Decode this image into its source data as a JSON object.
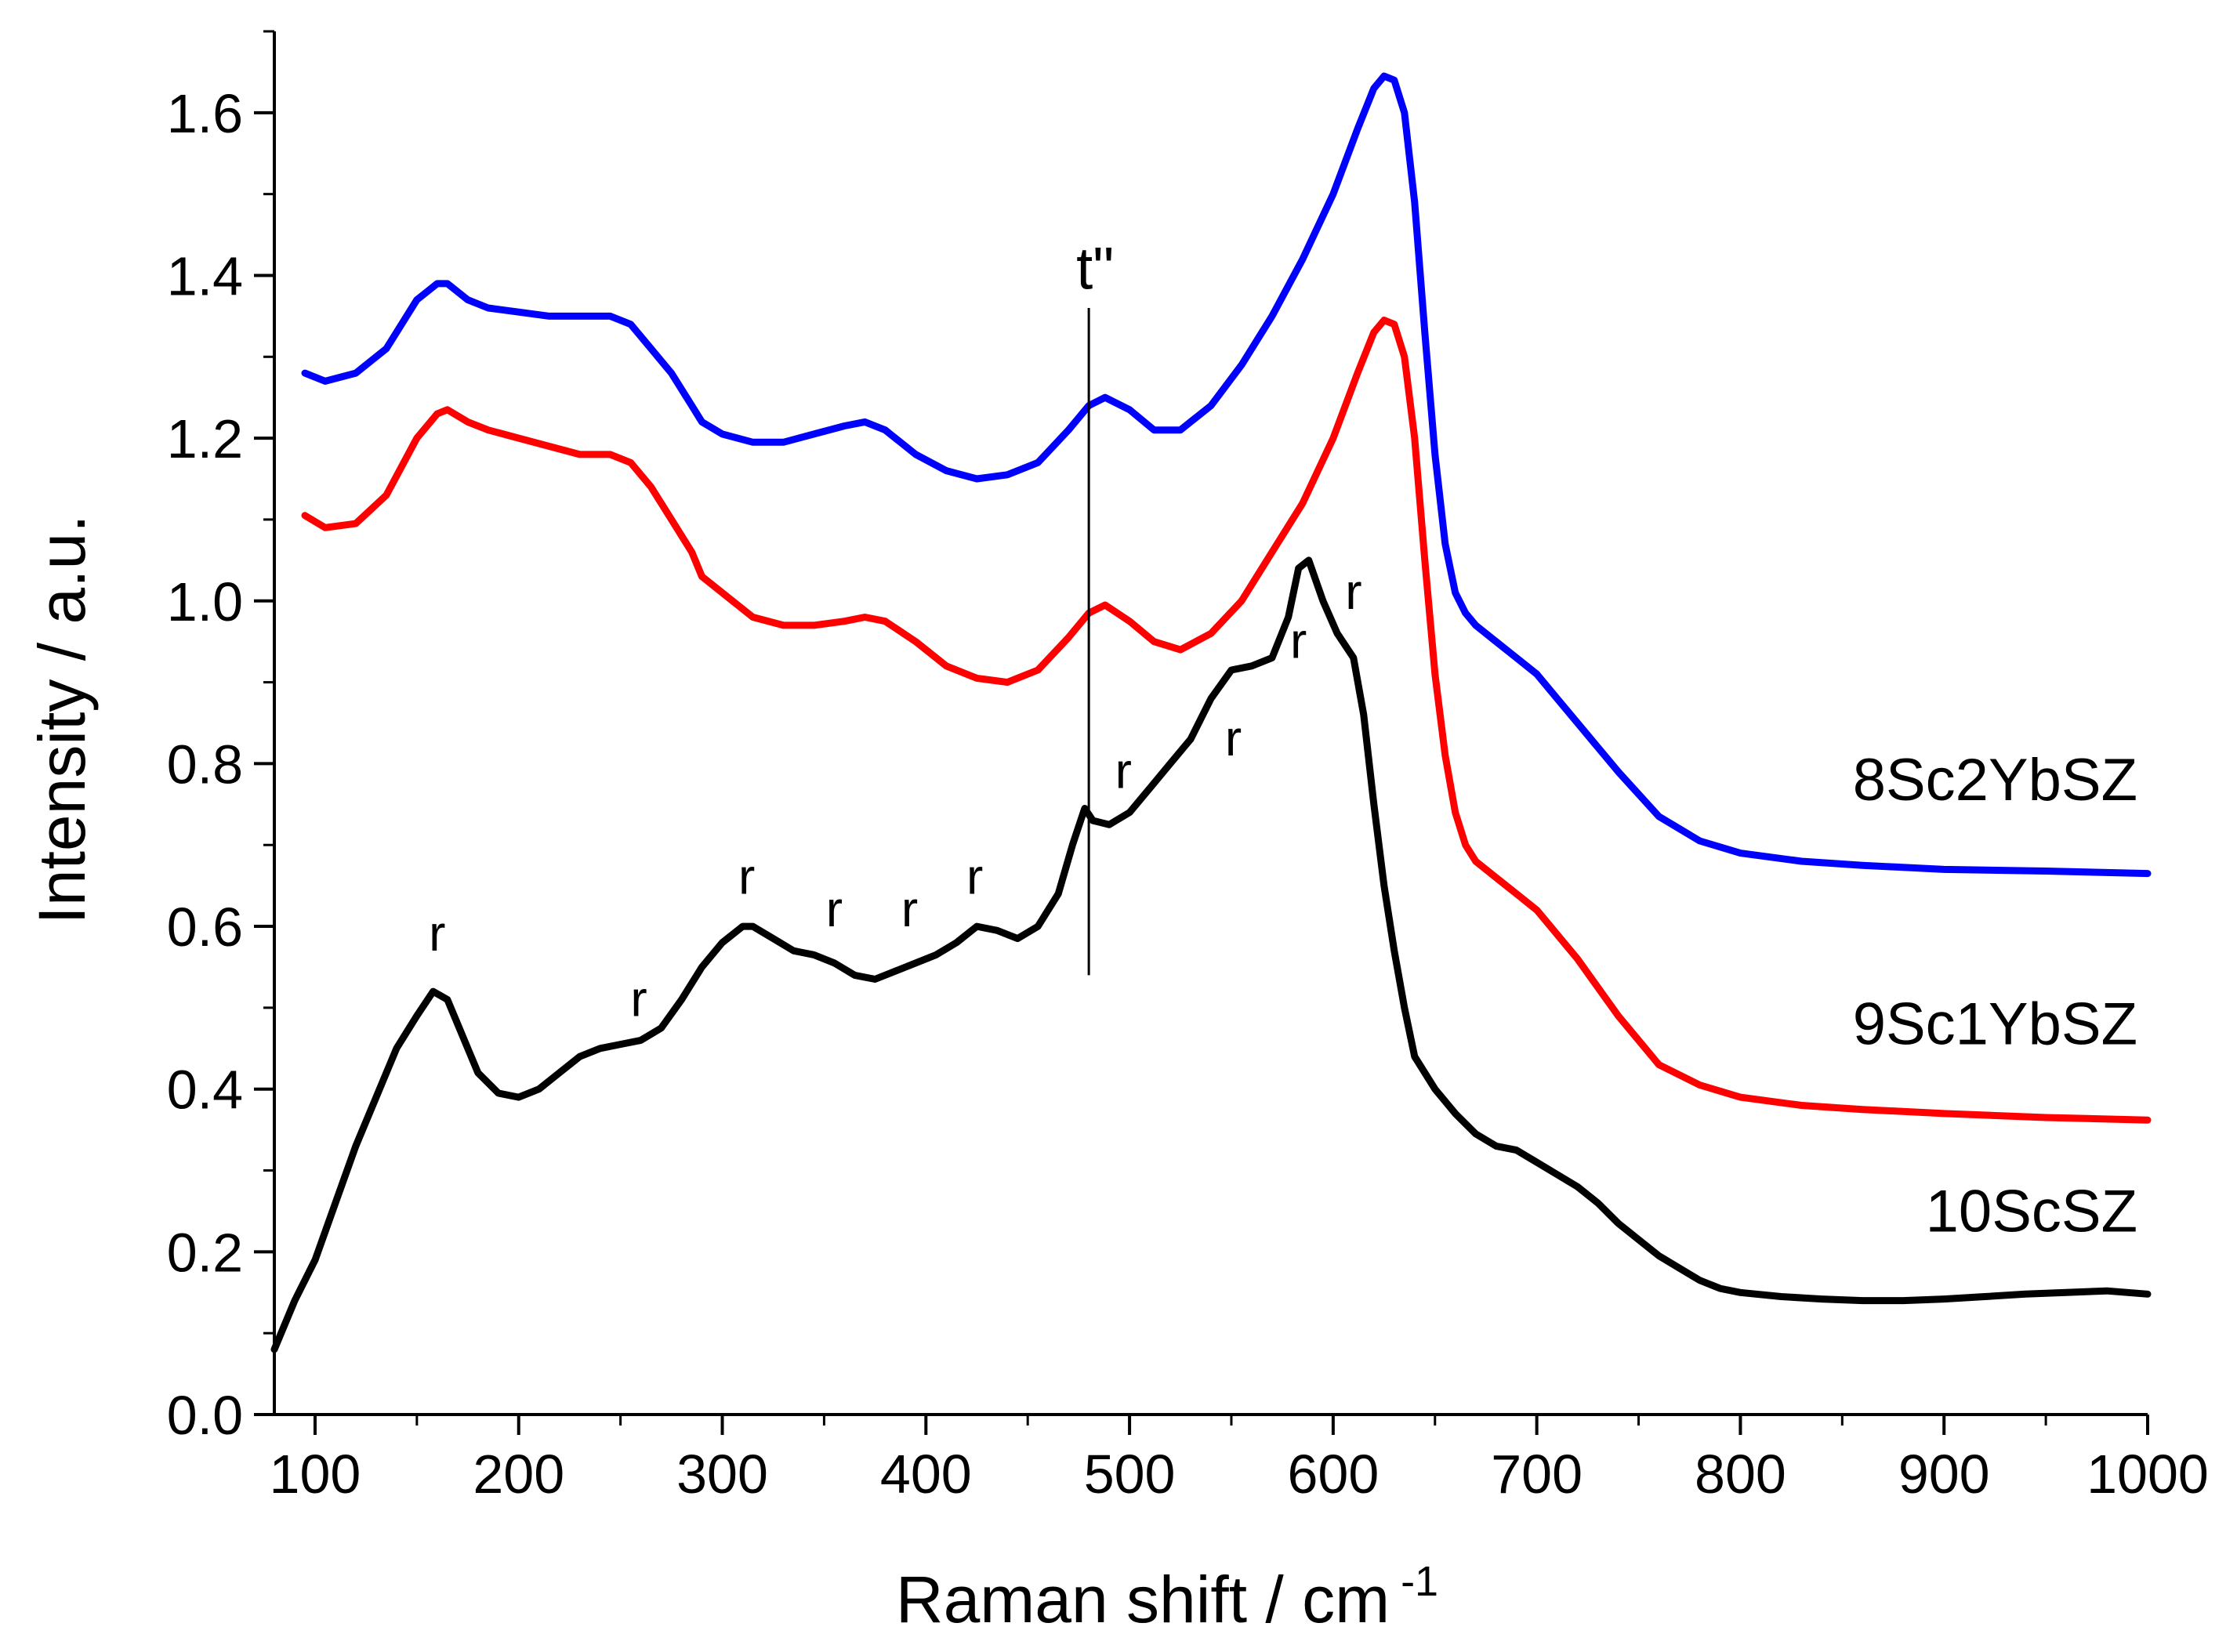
{
  "chart_data": {
    "type": "line",
    "xlabel": "Raman shift / cm",
    "xlabel_superscript": "-1",
    "ylabel": "Intensity / a.u.",
    "xlim": [
      80,
      1000
    ],
    "ylim": [
      0.0,
      1.7
    ],
    "x_ticks": [
      100,
      200,
      300,
      400,
      500,
      600,
      700,
      800,
      900,
      1000
    ],
    "x_tick_labels": [
      "100",
      "200",
      "300",
      "400",
      "500",
      "600",
      "700",
      "800",
      "900",
      "1000"
    ],
    "y_ticks": [
      0.0,
      0.2,
      0.4,
      0.6,
      0.8,
      1.0,
      1.2,
      1.4,
      1.6
    ],
    "y_tick_labels": [
      "0.0",
      "0.2",
      "0.4",
      "0.6",
      "0.8",
      "1.0",
      "1.2",
      "1.4",
      "1.6"
    ],
    "grid": false,
    "series": [
      {
        "name": "8Sc2YbSZ",
        "color": "#0000ff",
        "x": [
          95,
          105,
          120,
          135,
          150,
          160,
          165,
          175,
          185,
          200,
          215,
          230,
          245,
          255,
          265,
          275,
          285,
          290,
          300,
          315,
          330,
          345,
          360,
          370,
          380,
          395,
          410,
          425,
          440,
          455,
          470,
          480,
          488,
          500,
          512,
          525,
          540,
          555,
          570,
          585,
          600,
          612,
          620,
          625,
          630,
          635,
          640,
          645,
          650,
          655,
          660,
          665,
          670,
          680,
          690,
          700,
          710,
          720,
          740,
          760,
          780,
          800,
          830,
          860,
          900,
          950,
          1000
        ],
        "y": [
          1.28,
          1.27,
          1.28,
          1.31,
          1.37,
          1.39,
          1.39,
          1.37,
          1.36,
          1.355,
          1.35,
          1.35,
          1.35,
          1.34,
          1.31,
          1.28,
          1.24,
          1.22,
          1.205,
          1.195,
          1.195,
          1.205,
          1.215,
          1.22,
          1.21,
          1.18,
          1.16,
          1.15,
          1.155,
          1.17,
          1.21,
          1.24,
          1.25,
          1.235,
          1.21,
          1.21,
          1.24,
          1.29,
          1.35,
          1.42,
          1.5,
          1.58,
          1.63,
          1.645,
          1.64,
          1.6,
          1.49,
          1.33,
          1.18,
          1.07,
          1.01,
          0.985,
          0.97,
          0.95,
          0.93,
          0.91,
          0.88,
          0.85,
          0.79,
          0.735,
          0.705,
          0.69,
          0.68,
          0.675,
          0.67,
          0.668,
          0.665
        ]
      },
      {
        "name": "9Sc1YbSZ",
        "color": "#ff0000",
        "x": [
          95,
          105,
          120,
          135,
          150,
          160,
          165,
          175,
          185,
          200,
          215,
          230,
          245,
          255,
          265,
          275,
          285,
          290,
          300,
          315,
          330,
          345,
          360,
          370,
          380,
          395,
          410,
          425,
          440,
          455,
          470,
          480,
          488,
          500,
          512,
          525,
          540,
          555,
          570,
          585,
          600,
          612,
          620,
          625,
          630,
          635,
          640,
          645,
          650,
          655,
          660,
          665,
          670,
          680,
          690,
          700,
          710,
          720,
          740,
          760,
          780,
          800,
          830,
          860,
          900,
          950,
          1000
        ],
        "y": [
          1.105,
          1.09,
          1.095,
          1.13,
          1.2,
          1.23,
          1.235,
          1.22,
          1.21,
          1.2,
          1.19,
          1.18,
          1.18,
          1.17,
          1.14,
          1.1,
          1.06,
          1.03,
          1.01,
          0.98,
          0.97,
          0.97,
          0.975,
          0.98,
          0.975,
          0.95,
          0.92,
          0.905,
          0.9,
          0.915,
          0.955,
          0.985,
          0.995,
          0.975,
          0.95,
          0.94,
          0.96,
          1.0,
          1.06,
          1.12,
          1.2,
          1.28,
          1.33,
          1.345,
          1.34,
          1.3,
          1.2,
          1.05,
          0.91,
          0.81,
          0.74,
          0.7,
          0.68,
          0.66,
          0.64,
          0.62,
          0.59,
          0.56,
          0.49,
          0.43,
          0.405,
          0.39,
          0.38,
          0.375,
          0.37,
          0.365,
          0.362
        ]
      },
      {
        "name": "10ScSZ",
        "color": "#000000",
        "x": [
          80,
          90,
          100,
          110,
          120,
          130,
          140,
          150,
          158,
          165,
          170,
          175,
          180,
          190,
          200,
          210,
          220,
          230,
          240,
          250,
          260,
          270,
          280,
          290,
          300,
          310,
          315,
          325,
          335,
          345,
          355,
          365,
          375,
          385,
          395,
          405,
          415,
          425,
          435,
          445,
          455,
          465,
          472,
          478,
          482,
          490,
          500,
          510,
          520,
          530,
          540,
          550,
          560,
          570,
          578,
          583,
          588,
          595,
          602,
          610,
          615,
          620,
          625,
          630,
          635,
          640,
          650,
          660,
          670,
          680,
          690,
          700,
          710,
          720,
          730,
          740,
          750,
          760,
          770,
          780,
          790,
          800,
          820,
          840,
          860,
          880,
          900,
          920,
          940,
          960,
          980,
          1000
        ],
        "y": [
          0.08,
          0.14,
          0.19,
          0.26,
          0.33,
          0.39,
          0.45,
          0.49,
          0.52,
          0.51,
          0.48,
          0.45,
          0.42,
          0.395,
          0.39,
          0.4,
          0.42,
          0.44,
          0.45,
          0.455,
          0.46,
          0.475,
          0.51,
          0.55,
          0.58,
          0.6,
          0.6,
          0.585,
          0.57,
          0.565,
          0.555,
          0.54,
          0.535,
          0.545,
          0.555,
          0.565,
          0.58,
          0.6,
          0.595,
          0.585,
          0.6,
          0.64,
          0.7,
          0.745,
          0.73,
          0.725,
          0.74,
          0.77,
          0.8,
          0.83,
          0.88,
          0.915,
          0.92,
          0.93,
          0.98,
          1.04,
          1.05,
          1.0,
          0.96,
          0.93,
          0.86,
          0.75,
          0.65,
          0.57,
          0.5,
          0.44,
          0.4,
          0.37,
          0.345,
          0.33,
          0.325,
          0.31,
          0.295,
          0.28,
          0.26,
          0.235,
          0.215,
          0.195,
          0.18,
          0.165,
          0.155,
          0.15,
          0.145,
          0.142,
          0.14,
          0.14,
          0.142,
          0.145,
          0.148,
          0.15,
          0.152,
          0.148
        ]
      }
    ],
    "series_labels": [
      {
        "text": "8Sc2YbSZ",
        "x": 995,
        "y": 0.755
      },
      {
        "text": "9Sc1YbSZ",
        "x": 995,
        "y": 0.455
      },
      {
        "text": "10ScSZ",
        "x": 995,
        "y": 0.225
      }
    ],
    "annotations": [
      {
        "text": "r",
        "x": 160,
        "y": 0.57
      },
      {
        "text": "r",
        "x": 259,
        "y": 0.49
      },
      {
        "text": "r",
        "x": 312,
        "y": 0.64
      },
      {
        "text": "r",
        "x": 355,
        "y": 0.6
      },
      {
        "text": "r",
        "x": 392,
        "y": 0.6
      },
      {
        "text": "r",
        "x": 424,
        "y": 0.64
      },
      {
        "text": "r",
        "x": 497,
        "y": 0.77
      },
      {
        "text": "r",
        "x": 551,
        "y": 0.81
      },
      {
        "text": "r",
        "x": 583,
        "y": 0.93
      },
      {
        "text": "r",
        "x": 610,
        "y": 0.99
      }
    ],
    "reference_line": {
      "label": "t\"",
      "x": 480,
      "y_from": 0.54,
      "y_to": 1.36,
      "label_y": 1.405
    }
  }
}
